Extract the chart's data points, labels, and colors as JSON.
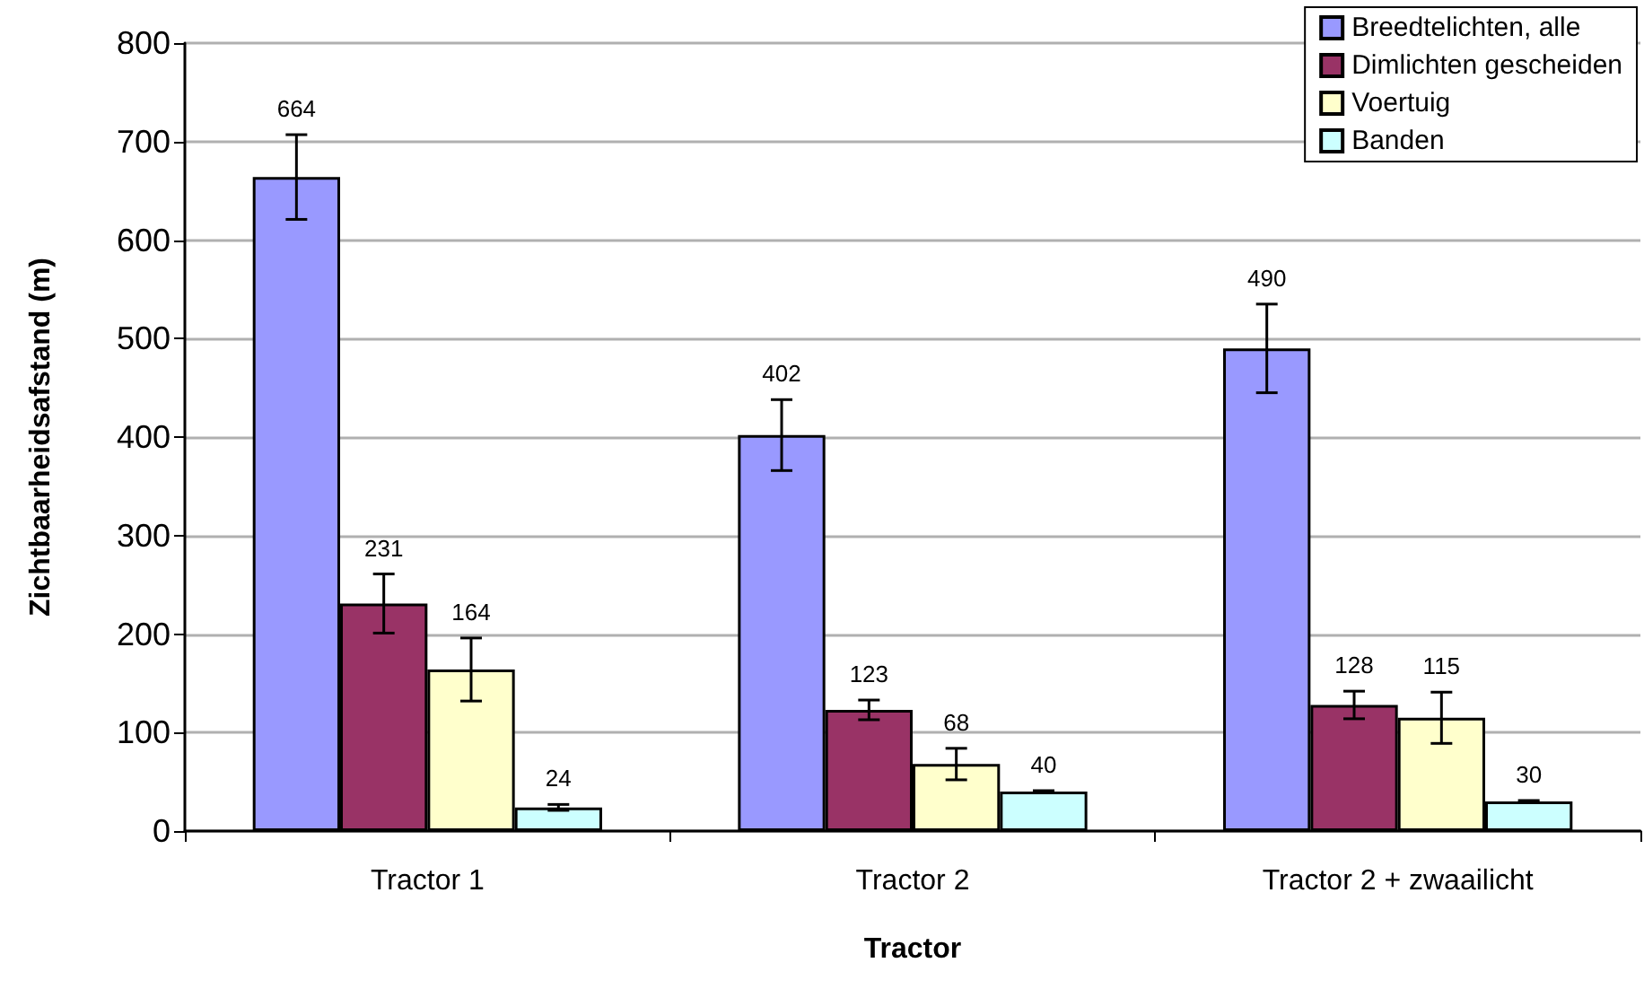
{
  "chart_data": {
    "type": "bar",
    "xlabel": "Tractor",
    "ylabel": "Zichtbaarheidsafstand (m)",
    "categories": [
      "Tractor 1",
      "Tractor 2",
      "Tractor 2 + zwaailicht"
    ],
    "series": [
      {
        "name": "Breedtelichten, alle",
        "color": "#9999ff",
        "values": [
          664,
          402,
          490
        ],
        "errors": [
          43,
          36,
          45
        ]
      },
      {
        "name": "Dimlichten gescheiden",
        "color": "#993366",
        "values": [
          231,
          123,
          128
        ],
        "errors": [
          30,
          10,
          14
        ]
      },
      {
        "name": "Voertuig",
        "color": "#ffffcc",
        "values": [
          164,
          68,
          115
        ],
        "errors": [
          32,
          16,
          26
        ]
      },
      {
        "name": "Banden",
        "color": "#ccffff",
        "values": [
          24,
          40,
          30
        ],
        "errors": [
          3,
          1,
          1
        ]
      }
    ],
    "ylim": [
      0,
      800
    ],
    "yticks": [
      0,
      100,
      200,
      300,
      400,
      500,
      600,
      700,
      800
    ],
    "grid": "y",
    "legend": "top right",
    "data_labels": true
  }
}
